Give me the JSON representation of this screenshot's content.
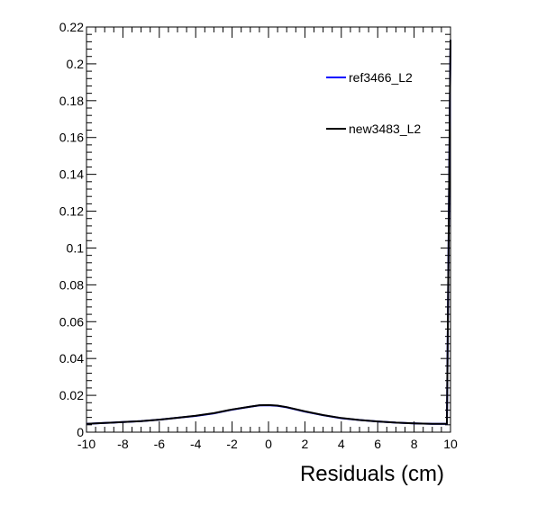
{
  "chart_data": {
    "type": "line",
    "title": "",
    "xlabel": "Residuals (cm)",
    "ylabel": "",
    "xlim": [
      -10,
      10
    ],
    "ylim": [
      0,
      0.22
    ],
    "grid": false,
    "legend_position": "top-right",
    "x_ticks": [
      -10,
      -8,
      -6,
      -4,
      -2,
      0,
      2,
      4,
      6,
      8,
      10
    ],
    "x_tick_labels": [
      "-10",
      "-8",
      "-6",
      "-4",
      "-2",
      "0",
      "2",
      "4",
      "6",
      "8",
      "10"
    ],
    "y_ticks": [
      0,
      0.02,
      0.04,
      0.06,
      0.08,
      0.1,
      0.12,
      0.14,
      0.16,
      0.18,
      0.2,
      0.22
    ],
    "y_tick_labels": [
      "0",
      "0.02",
      "0.04",
      "0.06",
      "0.08",
      "0.1",
      "0.12",
      "0.14",
      "0.16",
      "0.18",
      "0.2",
      "0.22"
    ],
    "x": [
      -10,
      -9,
      -8,
      -7,
      -6,
      -5,
      -4,
      -3,
      -2,
      -1,
      -0.5,
      0,
      0.5,
      1,
      2,
      3,
      4,
      5,
      6,
      7,
      8,
      9,
      9.8,
      10
    ],
    "series": [
      {
        "name": "ref3466_L2",
        "color": "#0000ff",
        "values": [
          0.0045,
          0.005,
          0.0055,
          0.006,
          0.0068,
          0.0078,
          0.0088,
          0.0102,
          0.0122,
          0.0138,
          0.0145,
          0.0146,
          0.0143,
          0.0135,
          0.0112,
          0.0092,
          0.0076,
          0.0066,
          0.0058,
          0.0052,
          0.0048,
          0.0045,
          0.0045,
          0.213
        ]
      },
      {
        "name": "new3483_L2",
        "color": "#000000",
        "values": [
          0.0045,
          0.005,
          0.0055,
          0.006,
          0.0068,
          0.0078,
          0.0089,
          0.0103,
          0.0123,
          0.0139,
          0.0146,
          0.0147,
          0.0144,
          0.0136,
          0.0113,
          0.0093,
          0.0077,
          0.0066,
          0.0058,
          0.0052,
          0.0048,
          0.0045,
          0.0045,
          0.213
        ]
      }
    ]
  }
}
